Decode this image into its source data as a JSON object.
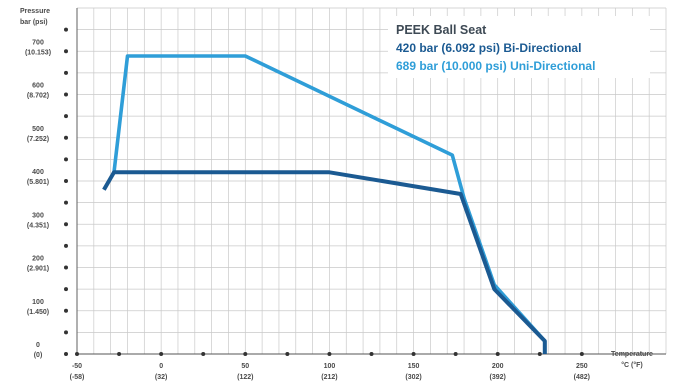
{
  "chart_data": {
    "type": "line",
    "title": "",
    "xlabel": "Temperature °C (°F)",
    "ylabel": "Pressure bar (psi)",
    "xlabel_lines": [
      "Temperature",
      "°C (°F)"
    ],
    "ylabel_lines": [
      "Pressure",
      "bar (psi)"
    ],
    "xlim": [
      -50,
      300
    ],
    "ylim": [
      0,
      800
    ],
    "grid": true,
    "legend_placement": "top-right",
    "legend_title": "PEEK Ball Seat",
    "x_ticks": [
      {
        "value": -50,
        "top": "-50",
        "bottom": "(-58)"
      },
      {
        "value": 0,
        "top": "0",
        "bottom": "(32)"
      },
      {
        "value": 50,
        "top": "50",
        "bottom": "(122)"
      },
      {
        "value": 100,
        "top": "100",
        "bottom": "(212)"
      },
      {
        "value": 150,
        "top": "150",
        "bottom": "(302)"
      },
      {
        "value": 200,
        "top": "200",
        "bottom": "(392)"
      },
      {
        "value": 250,
        "top": "250",
        "bottom": "(482)"
      }
    ],
    "y_ticks": [
      {
        "value": 0,
        "top": "0",
        "bottom": "(0)"
      },
      {
        "value": 100,
        "top": "100",
        "bottom": "(1.450)"
      },
      {
        "value": 200,
        "top": "200",
        "bottom": "(2.901)"
      },
      {
        "value": 300,
        "top": "300",
        "bottom": "(4.351)"
      },
      {
        "value": 400,
        "top": "400",
        "bottom": "(5.801)"
      },
      {
        "value": 500,
        "top": "500",
        "bottom": "(7.252)"
      },
      {
        "value": 600,
        "top": "600",
        "bottom": "(8.702)"
      },
      {
        "value": 700,
        "top": "700",
        "bottom": "(10.153)"
      }
    ],
    "series": [
      {
        "name": "420 bar (6.092 psi) Bi-Directional",
        "color": "#1b5a92",
        "x": [
          -34,
          -28,
          100,
          178,
          198,
          228,
          228
        ],
        "y": [
          380,
          420,
          420,
          370,
          150,
          30,
          0
        ]
      },
      {
        "name": "689 bar (10.000 psi) Uni-Directional",
        "color": "#2f9ed8",
        "x": [
          -28,
          -20,
          50,
          173,
          180,
          198,
          228,
          228
        ],
        "y": [
          420,
          689,
          689,
          460,
          360,
          160,
          30,
          0
        ]
      }
    ]
  }
}
